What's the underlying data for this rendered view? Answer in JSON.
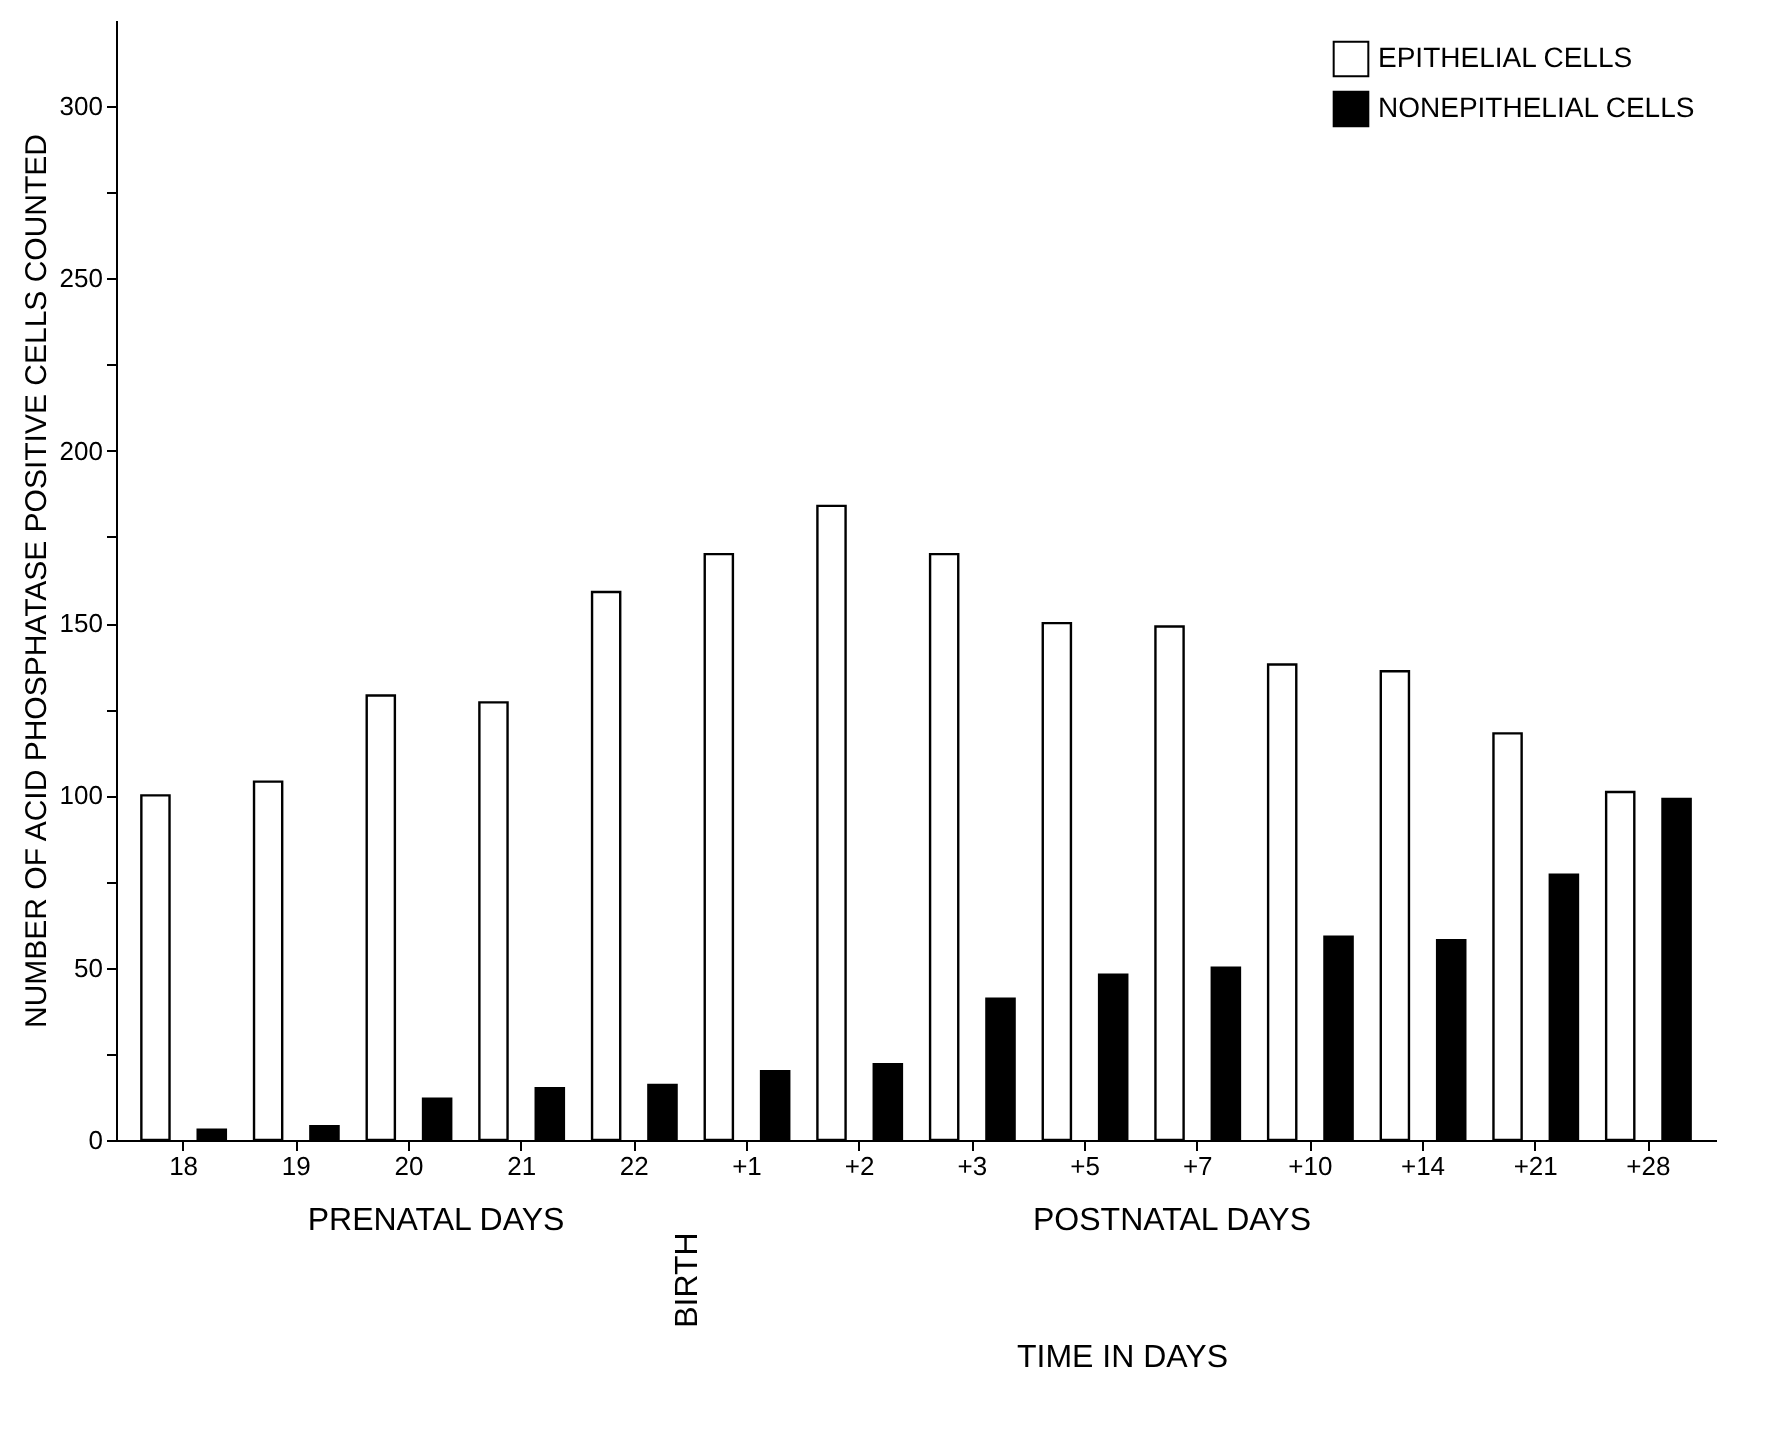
{
  "chart_data": {
    "type": "bar",
    "xlabel": "TIME IN DAYS",
    "ylabel": "NUMBER OF ACID PHOSPHATASE POSITIVE CELLS COUNTED",
    "categories": [
      "18",
      "19",
      "20",
      "21",
      "22",
      "+1",
      "+2",
      "+3",
      "+5",
      "+7",
      "+10",
      "+14",
      "+21",
      "+28"
    ],
    "series": [
      {
        "name": "EPITHELIAL CELLS",
        "color": "#ffffff",
        "values": [
          100,
          104,
          129,
          127,
          159,
          170,
          184,
          170,
          150,
          149,
          138,
          136,
          118,
          101
        ]
      },
      {
        "name": "NONEPITHELIAL CELLS",
        "color": "#000000",
        "values": [
          3,
          4,
          12,
          15,
          16,
          20,
          22,
          41,
          48,
          50,
          59,
          58,
          77,
          99
        ]
      }
    ],
    "ylim": [
      0,
      325
    ],
    "yticks": [
      0,
      {
        "value": 25,
        "label": null
      },
      50,
      {
        "value": 75,
        "label": null
      },
      100,
      {
        "value": 125,
        "label": null
      },
      150,
      {
        "value": 175,
        "label": null
      },
      200,
      {
        "value": 225,
        "label": null
      },
      250,
      {
        "value": 275,
        "label": null
      },
      300
    ],
    "grid": false,
    "legend": "top right",
    "annotations": [
      "PRENATAL DAYS",
      "POSTNATAL DAYS",
      "BIRTH"
    ]
  }
}
